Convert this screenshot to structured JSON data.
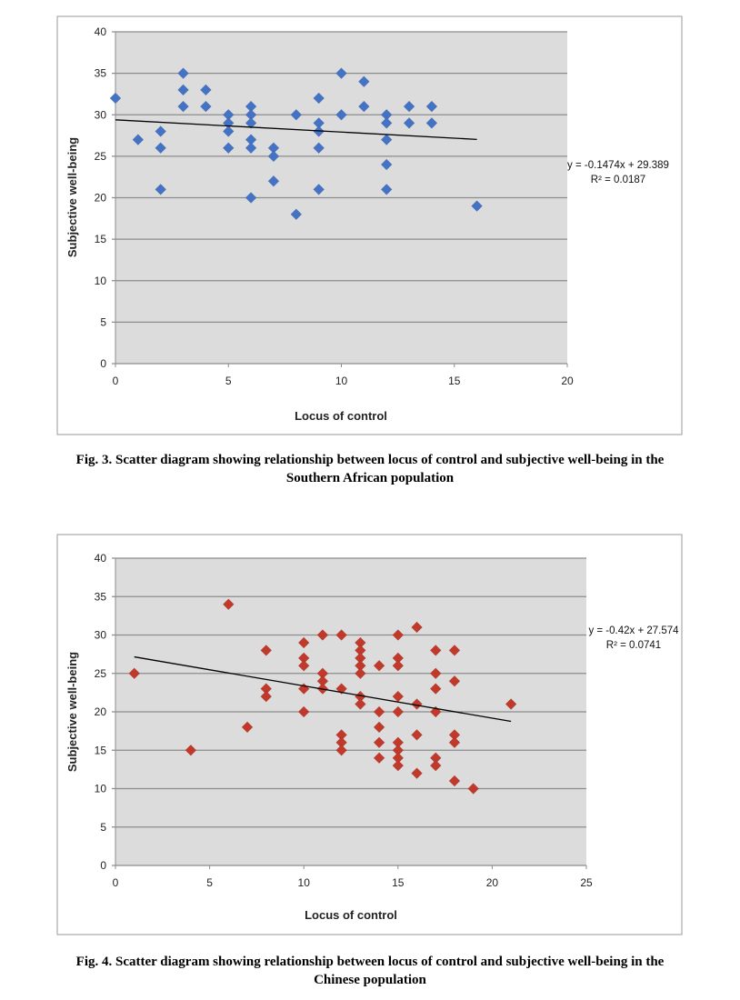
{
  "chart_data": [
    {
      "type": "scatter",
      "title": "",
      "xlabel": "Locus of control",
      "ylabel": "Subjective well-being",
      "xlim": [
        0,
        20
      ],
      "ylim": [
        0,
        40
      ],
      "xticks": [
        "0",
        "5",
        "10",
        "15",
        "20"
      ],
      "yticks": [
        "0",
        "5",
        "10",
        "15",
        "20",
        "25",
        "30",
        "35",
        "40"
      ],
      "grid": "horizontal",
      "marker_color": "#4472C4",
      "trendline": {
        "slope": -0.1474,
        "intercept": 29.389,
        "x_range": [
          0,
          16
        ],
        "equation": "y = -0.1474x + 29.389",
        "r2": "R² = 0.0187"
      },
      "points": [
        [
          0,
          32
        ],
        [
          1,
          27
        ],
        [
          2,
          28
        ],
        [
          2,
          26
        ],
        [
          2,
          21
        ],
        [
          3,
          35
        ],
        [
          3,
          33
        ],
        [
          3,
          31
        ],
        [
          4,
          33
        ],
        [
          4,
          31
        ],
        [
          5,
          30
        ],
        [
          5,
          29
        ],
        [
          5,
          28
        ],
        [
          5,
          26
        ],
        [
          6,
          31
        ],
        [
          6,
          30
        ],
        [
          6,
          29
        ],
        [
          6,
          27
        ],
        [
          6,
          26
        ],
        [
          6,
          20
        ],
        [
          7,
          26
        ],
        [
          7,
          25
        ],
        [
          7,
          22
        ],
        [
          8,
          30
        ],
        [
          8,
          18
        ],
        [
          9,
          32
        ],
        [
          9,
          29
        ],
        [
          9,
          28
        ],
        [
          9,
          26
        ],
        [
          9,
          21
        ],
        [
          10,
          35
        ],
        [
          10,
          30
        ],
        [
          11,
          34
        ],
        [
          11,
          31
        ],
        [
          12,
          30
        ],
        [
          12,
          29
        ],
        [
          12,
          27
        ],
        [
          12,
          24
        ],
        [
          12,
          21
        ],
        [
          13,
          31
        ],
        [
          13,
          29
        ],
        [
          14,
          31
        ],
        [
          14,
          29
        ],
        [
          16,
          19
        ]
      ],
      "caption": [
        "Fig. 3. Scatter diagram showing relationship between locus of control and subjective well-being in the",
        "Southern African population"
      ]
    },
    {
      "type": "scatter",
      "title": "",
      "xlabel": "Locus of control",
      "ylabel": "Subjective well-being",
      "xlim": [
        0,
        25
      ],
      "ylim": [
        0,
        40
      ],
      "xticks": [
        "0",
        "5",
        "10",
        "15",
        "20",
        "25"
      ],
      "yticks": [
        "0",
        "5",
        "10",
        "15",
        "20",
        "25",
        "30",
        "35",
        "40"
      ],
      "grid": "horizontal",
      "marker_color": "#C0392B",
      "trendline": {
        "slope": -0.42,
        "intercept": 27.574,
        "x_range": [
          1,
          21
        ],
        "equation": "y = -0.42x + 27.574",
        "r2": "R² = 0.0741"
      },
      "points": [
        [
          1,
          25
        ],
        [
          4,
          15
        ],
        [
          6,
          34
        ],
        [
          7,
          18
        ],
        [
          8,
          28
        ],
        [
          8,
          23
        ],
        [
          8,
          22
        ],
        [
          10,
          29
        ],
        [
          10,
          27
        ],
        [
          10,
          26
        ],
        [
          10,
          23
        ],
        [
          10,
          20
        ],
        [
          11,
          30
        ],
        [
          11,
          25
        ],
        [
          11,
          24
        ],
        [
          11,
          23
        ],
        [
          12,
          30
        ],
        [
          12,
          23
        ],
        [
          12,
          17
        ],
        [
          12,
          16
        ],
        [
          12,
          15
        ],
        [
          13,
          29
        ],
        [
          13,
          28
        ],
        [
          13,
          27
        ],
        [
          13,
          26
        ],
        [
          13,
          25
        ],
        [
          13,
          22
        ],
        [
          13,
          21
        ],
        [
          14,
          26
        ],
        [
          14,
          20
        ],
        [
          14,
          18
        ],
        [
          14,
          16
        ],
        [
          14,
          14
        ],
        [
          15,
          30
        ],
        [
          15,
          27
        ],
        [
          15,
          26
        ],
        [
          15,
          22
        ],
        [
          15,
          20
        ],
        [
          15,
          16
        ],
        [
          15,
          15
        ],
        [
          15,
          14
        ],
        [
          15,
          13
        ],
        [
          16,
          31
        ],
        [
          16,
          21
        ],
        [
          16,
          17
        ],
        [
          16,
          12
        ],
        [
          17,
          28
        ],
        [
          17,
          25
        ],
        [
          17,
          23
        ],
        [
          17,
          20
        ],
        [
          17,
          14
        ],
        [
          17,
          13
        ],
        [
          18,
          28
        ],
        [
          18,
          24
        ],
        [
          18,
          17
        ],
        [
          18,
          16
        ],
        [
          18,
          11
        ],
        [
          19,
          10
        ],
        [
          21,
          21
        ]
      ],
      "caption": [
        "Fig. 4. Scatter diagram showing relationship between locus of control and subjective well-being in the",
        "Chinese population"
      ]
    }
  ]
}
